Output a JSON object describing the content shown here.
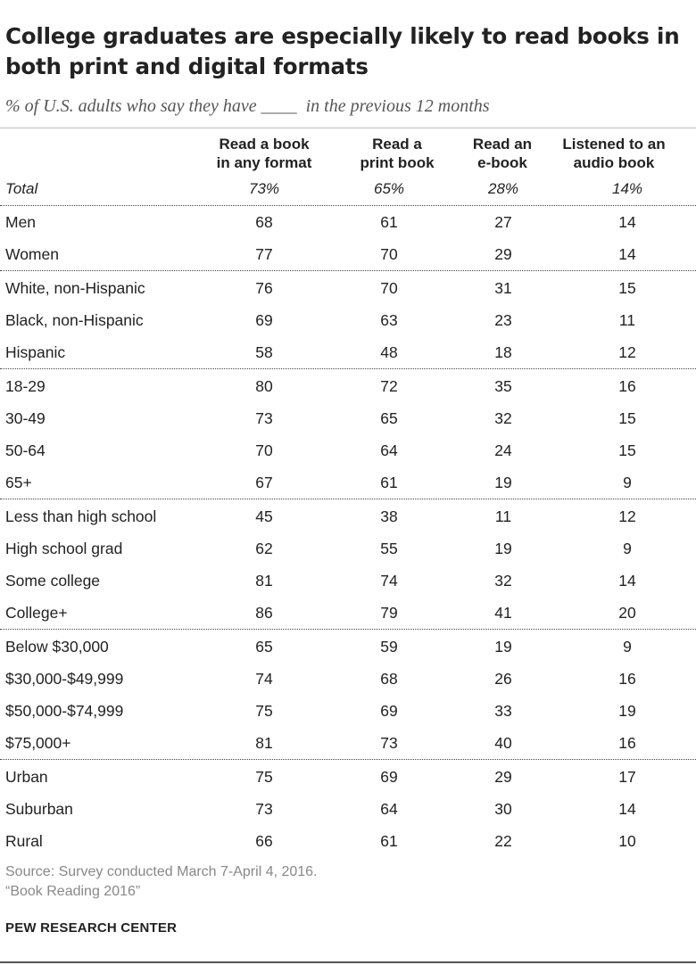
{
  "title": "College graduates are especially likely to read books in both print and digital formats",
  "subtitle": "% of U.S. adults who say they have ____  in the previous 12 months",
  "chart_data": {
    "type": "table",
    "columns": [
      {
        "line1": "Read a book",
        "line2": "in any format"
      },
      {
        "line1": "Read a",
        "line2": "print book"
      },
      {
        "line1": "Read an",
        "line2": "e-book"
      },
      {
        "line1": "Listened to an",
        "line2": "audio book"
      }
    ],
    "total": {
      "label": "Total",
      "values": [
        "73%",
        "65%",
        "28%",
        "14%"
      ]
    },
    "groups": [
      {
        "rows": [
          {
            "label": "Men",
            "values": [
              68,
              61,
              27,
              14
            ]
          },
          {
            "label": "Women",
            "values": [
              77,
              70,
              29,
              14
            ]
          }
        ]
      },
      {
        "rows": [
          {
            "label": "White, non-Hispanic",
            "values": [
              76,
              70,
              31,
              15
            ]
          },
          {
            "label": "Black, non-Hispanic",
            "values": [
              69,
              63,
              23,
              11
            ]
          },
          {
            "label": "Hispanic",
            "values": [
              58,
              48,
              18,
              12
            ]
          }
        ]
      },
      {
        "rows": [
          {
            "label": "18-29",
            "values": [
              80,
              72,
              35,
              16
            ]
          },
          {
            "label": "30-49",
            "values": [
              73,
              65,
              32,
              15
            ]
          },
          {
            "label": "50-64",
            "values": [
              70,
              64,
              24,
              15
            ]
          },
          {
            "label": "65+",
            "values": [
              67,
              61,
              19,
              9
            ]
          }
        ]
      },
      {
        "rows": [
          {
            "label": "Less than high school",
            "values": [
              45,
              38,
              11,
              12
            ]
          },
          {
            "label": "High school grad",
            "values": [
              62,
              55,
              19,
              9
            ]
          },
          {
            "label": "Some college",
            "values": [
              81,
              74,
              32,
              14
            ]
          },
          {
            "label": "College+",
            "values": [
              86,
              79,
              41,
              20
            ]
          }
        ]
      },
      {
        "rows": [
          {
            "label": "Below $30,000",
            "values": [
              65,
              59,
              19,
              9
            ]
          },
          {
            "label": "$30,000-$49,999",
            "values": [
              74,
              68,
              26,
              16
            ]
          },
          {
            "label": "$50,000-$74,999",
            "values": [
              75,
              69,
              33,
              19
            ]
          },
          {
            "label": "$75,000+",
            "values": [
              81,
              73,
              40,
              16
            ]
          }
        ]
      },
      {
        "rows": [
          {
            "label": "Urban",
            "values": [
              75,
              69,
              29,
              17
            ]
          },
          {
            "label": "Suburban",
            "values": [
              73,
              64,
              30,
              14
            ]
          },
          {
            "label": "Rural",
            "values": [
              66,
              61,
              22,
              10
            ]
          }
        ]
      }
    ]
  },
  "source": {
    "line1": "Source: Survey conducted March 7-April 4, 2016.",
    "line2": "“Book Reading 2016”"
  },
  "brand": "PEW RESEARCH CENTER"
}
